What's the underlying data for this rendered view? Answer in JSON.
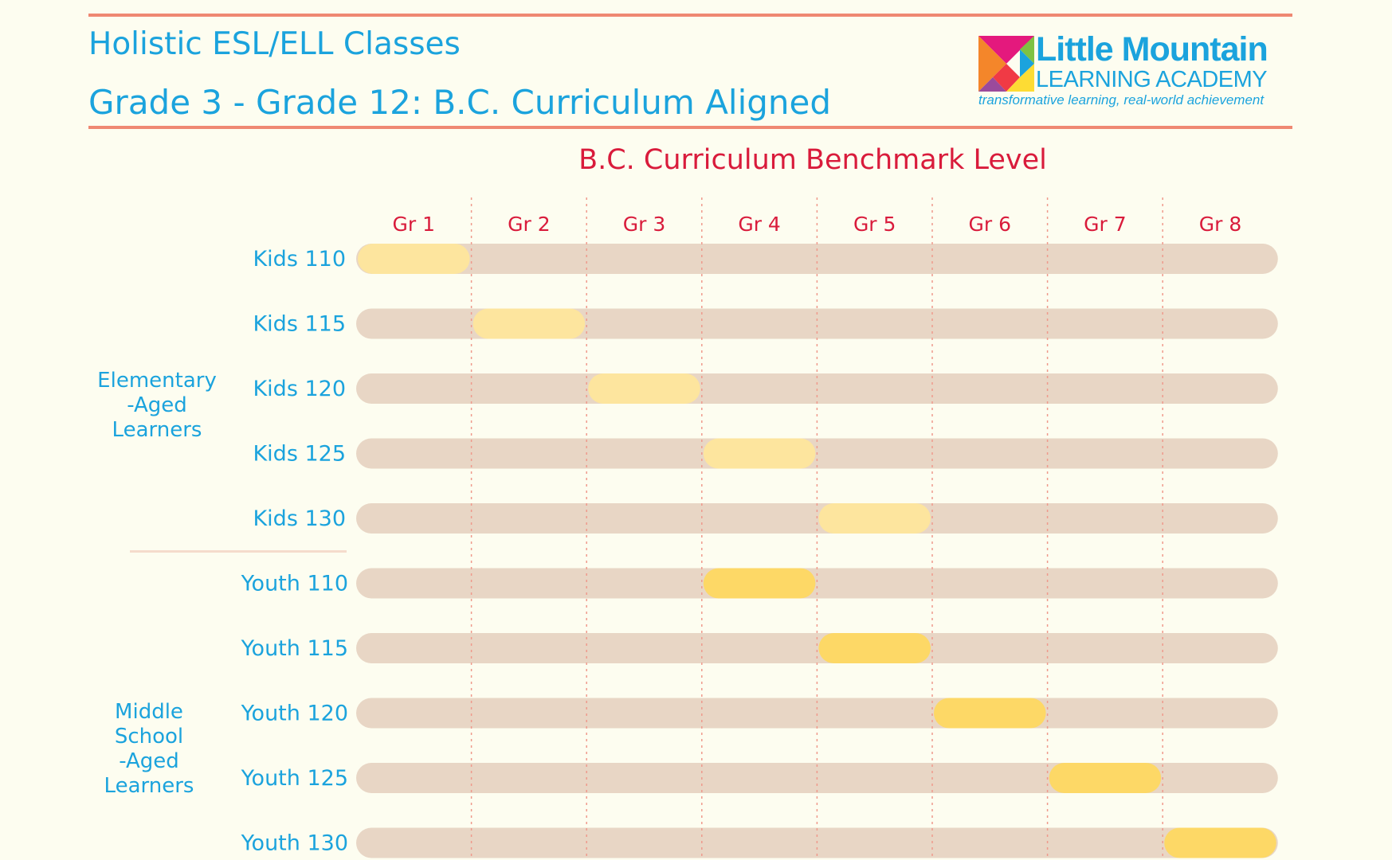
{
  "header": {
    "title_line1": "Holistic ESL/ELL Classes",
    "title_line2": "Grade 3 - Grade 12: B.C. Curriculum Aligned"
  },
  "logo": {
    "name": "Little Mountain",
    "subtitle": "LEARNING ACADEMY",
    "tagline": "transformative learning, real-world achievement"
  },
  "groups": [
    {
      "label": [
        "Elementary",
        "-Aged",
        "Learners"
      ]
    },
    {
      "label": [
        "Middle",
        "School",
        "-Aged",
        "Learners"
      ]
    }
  ],
  "colors": {
    "background": "#fdfdf0",
    "accent_rule": "#ef8872",
    "title_blue": "#1ba3dd",
    "chart_red": "#d91b3b",
    "track": "#e8d6c5",
    "kids_bar": "#fde59e",
    "youth_bar": "#fdd866",
    "gridline": "#ef9a8c"
  },
  "chart_data": {
    "type": "bar",
    "title": "B.C. Curriculum Benchmark Level",
    "categories": [
      "Gr 1",
      "Gr 2",
      "Gr 3",
      "Gr 4",
      "Gr 5",
      "Gr 6",
      "Gr 7",
      "Gr 8"
    ],
    "rows": [
      {
        "label": "Kids 110",
        "group": "Elementary-Aged Learners",
        "level": "Gr 1"
      },
      {
        "label": "Kids 115",
        "group": "Elementary-Aged Learners",
        "level": "Gr 2"
      },
      {
        "label": "Kids 120",
        "group": "Elementary-Aged Learners",
        "level": "Gr 3"
      },
      {
        "label": "Kids 125",
        "group": "Elementary-Aged Learners",
        "level": "Gr 4"
      },
      {
        "label": "Kids 130",
        "group": "Elementary-Aged Learners",
        "level": "Gr 5"
      },
      {
        "label": "Youth 110",
        "group": "Middle School-Aged Learners",
        "level": "Gr 4"
      },
      {
        "label": "Youth 115",
        "group": "Middle School-Aged Learners",
        "level": "Gr 5"
      },
      {
        "label": "Youth 120",
        "group": "Middle School-Aged Learners",
        "level": "Gr 6"
      },
      {
        "label": "Youth 125",
        "group": "Middle School-Aged Learners",
        "level": "Gr 7"
      },
      {
        "label": "Youth 130",
        "group": "Middle School-Aged Learners",
        "level": "Gr 8"
      }
    ]
  }
}
